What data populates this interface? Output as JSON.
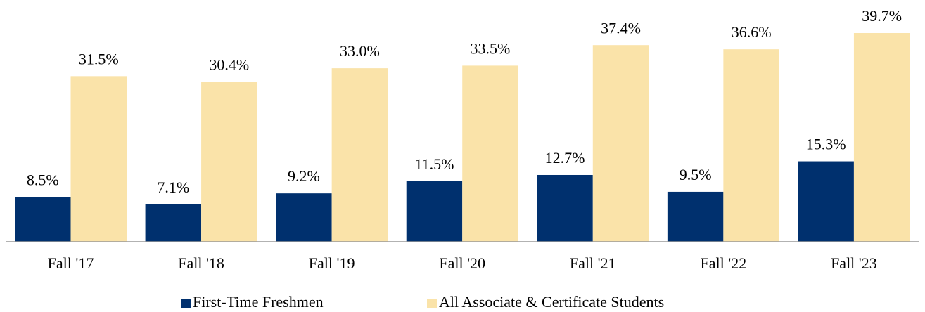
{
  "chart_data": {
    "type": "bar",
    "categories": [
      "Fall '17",
      "Fall '18",
      "Fall '19",
      "Fall '20",
      "Fall '21",
      "Fall '22",
      "Fall '23"
    ],
    "series": [
      {
        "name": "First-Time Freshmen",
        "color": "#00306e",
        "values": [
          8.5,
          7.1,
          9.2,
          11.5,
          12.7,
          9.5,
          15.3
        ],
        "value_labels": [
          "8.5%",
          "7.1%",
          "9.2%",
          "11.5%",
          "12.7%",
          "9.5%",
          "15.3%"
        ]
      },
      {
        "name": "All Associate & Certificate Students",
        "color": "#fae3a9",
        "values": [
          31.5,
          30.4,
          33.0,
          33.5,
          37.4,
          36.6,
          39.7
        ],
        "value_labels": [
          "31.5%",
          "30.4%",
          "33.0%",
          "33.5%",
          "37.4%",
          "36.6%",
          "39.7%"
        ]
      }
    ]
  }
}
